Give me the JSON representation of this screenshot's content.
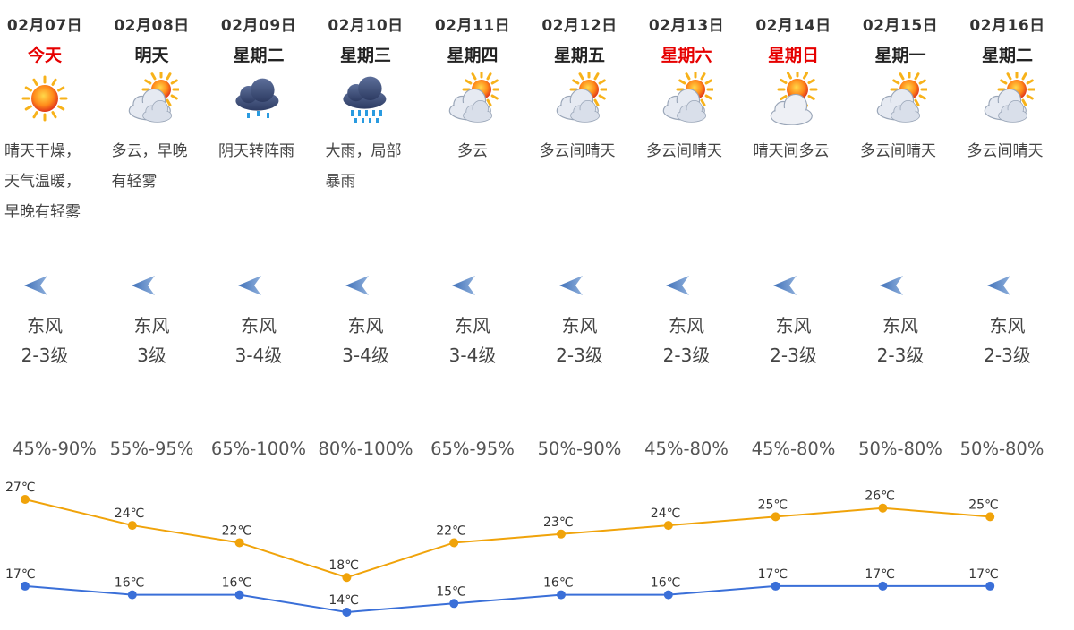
{
  "days": [
    {
      "date": "02月07日",
      "weekday": "今天",
      "weekday_red": true,
      "icon": "sunny-icon",
      "desc": "晴天干燥，天气温暖，早晚有轻雾",
      "wind_dir": "东风",
      "wind_level": "2-3级",
      "humidity": "45%-90%"
    },
    {
      "date": "02月08日",
      "weekday": "明天",
      "weekday_red": false,
      "icon": "partly-cloudy-icon",
      "desc": "多云，早晚有轻雾",
      "wind_dir": "东风",
      "wind_level": "3级",
      "humidity": "55%-95%"
    },
    {
      "date": "02月09日",
      "weekday": "星期二",
      "weekday_red": false,
      "icon": "shower-icon",
      "desc": "阴天转阵雨",
      "wind_dir": "东风",
      "wind_level": "3-4级",
      "humidity": "65%-100%"
    },
    {
      "date": "02月10日",
      "weekday": "星期三",
      "weekday_red": false,
      "icon": "heavy-rain-icon",
      "desc": "大雨，局部暴雨",
      "wind_dir": "东风",
      "wind_level": "3-4级",
      "humidity": "80%-100%"
    },
    {
      "date": "02月11日",
      "weekday": "星期四",
      "weekday_red": false,
      "icon": "partly-cloudy-icon",
      "desc": "多云",
      "wind_dir": "东风",
      "wind_level": "3-4级",
      "humidity": "65%-95%"
    },
    {
      "date": "02月12日",
      "weekday": "星期五",
      "weekday_red": false,
      "icon": "partly-cloudy-icon",
      "desc": "多云间晴天",
      "wind_dir": "东风",
      "wind_level": "2-3级",
      "humidity": "50%-90%"
    },
    {
      "date": "02月13日",
      "weekday": "星期六",
      "weekday_red": true,
      "icon": "partly-cloudy-icon",
      "desc": "多云间晴天",
      "wind_dir": "东风",
      "wind_level": "2-3级",
      "humidity": "45%-80%"
    },
    {
      "date": "02月14日",
      "weekday": "星期日",
      "weekday_red": true,
      "icon": "sunny-cloudy-icon",
      "desc": "晴天间多云",
      "wind_dir": "东风",
      "wind_level": "2-3级",
      "humidity": "45%-80%"
    },
    {
      "date": "02月15日",
      "weekday": "星期一",
      "weekday_red": false,
      "icon": "partly-cloudy-icon",
      "desc": "多云间晴天",
      "wind_dir": "东风",
      "wind_level": "2-3级",
      "humidity": "50%-80%"
    },
    {
      "date": "02月16日",
      "weekday": "星期二",
      "weekday_red": false,
      "icon": "partly-cloudy-icon",
      "desc": "多云间晴天",
      "wind_dir": "东风",
      "wind_level": "2-3级",
      "humidity": "50%-80%"
    }
  ],
  "colors": {
    "weekend_red": "#e60000",
    "high_line": "#f0a30a",
    "low_line": "#3a6fd8"
  },
  "chart_data": {
    "type": "line",
    "categories": [
      "02月07日",
      "02月08日",
      "02月09日",
      "02月10日",
      "02月11日",
      "02月12日",
      "02月13日",
      "02月14日",
      "02月15日",
      "02月16日"
    ],
    "series": [
      {
        "values": [
          27,
          24,
          22,
          18,
          22,
          23,
          24,
          25,
          26,
          25
        ],
        "color": "#f0a30a"
      },
      {
        "values": [
          17,
          16,
          16,
          14,
          15,
          16,
          16,
          17,
          17,
          17
        ],
        "color": "#3a6fd8"
      }
    ],
    "unit": "℃",
    "ylim": [
      14,
      27
    ]
  }
}
